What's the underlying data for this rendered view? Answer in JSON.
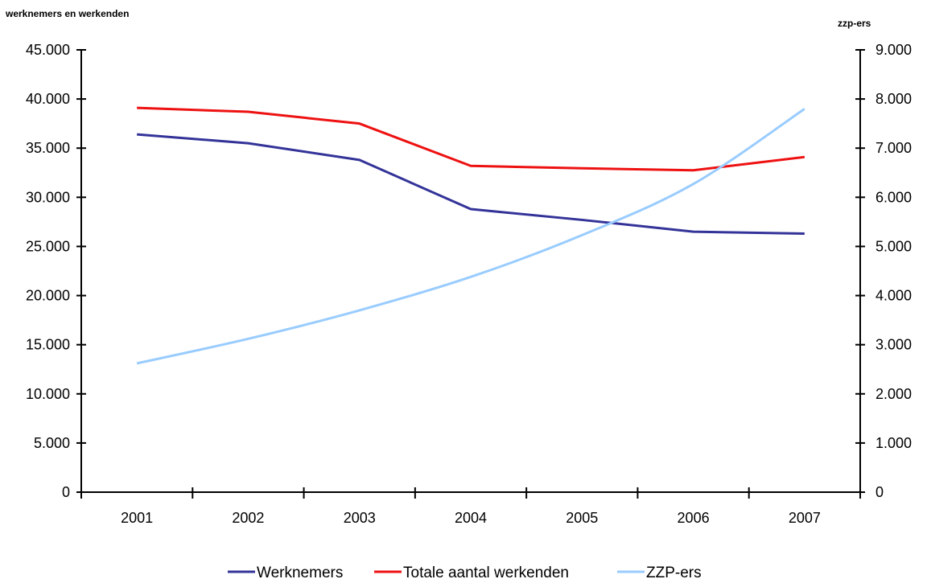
{
  "chart_data": {
    "type": "line",
    "categories": [
      "2001",
      "2002",
      "2003",
      "2004",
      "2005",
      "2006",
      "2007"
    ],
    "y_left": {
      "label": "werknemers en werkenden",
      "range": [
        0,
        45000
      ],
      "ticks": [
        "0",
        "5.000",
        "10.000",
        "15.000",
        "20.000",
        "25.000",
        "30.000",
        "35.000",
        "40.000",
        "45.000"
      ]
    },
    "y_right": {
      "label": "zzp-ers",
      "range": [
        0,
        9000
      ],
      "ticks": [
        "0",
        "1.000",
        "2.000",
        "3.000",
        "4.000",
        "5.000",
        "6.000",
        "7.000",
        "8.000",
        "9.000"
      ]
    },
    "series": [
      {
        "name": "Werknemers",
        "axis": "left",
        "color": "#333399",
        "values": [
          36400,
          35500,
          33800,
          28800,
          27700,
          26500,
          26300
        ]
      },
      {
        "name": "Totale aantal werkenden",
        "axis": "left",
        "color": "#ee1111",
        "values": [
          39100,
          38700,
          37500,
          33200,
          32950,
          32750,
          34100
        ]
      },
      {
        "name": "ZZP-ers",
        "axis": "right",
        "color": "#99ccff",
        "values": [
          2620,
          3120,
          3700,
          4380,
          5230,
          6270,
          7800
        ]
      }
    ],
    "grid": false,
    "legend_position": "bottom"
  }
}
